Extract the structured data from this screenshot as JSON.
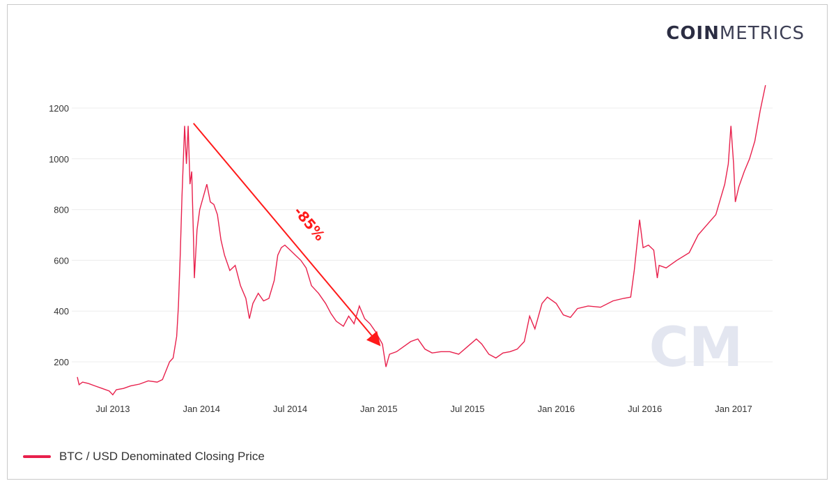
{
  "brand": {
    "bold": "COIN",
    "light": "METRICS",
    "watermark": "CM"
  },
  "colors": {
    "series": "#e8204c",
    "annotation": "#ff1a1a",
    "grid": "#ececec",
    "text": "#333333"
  },
  "chart_data": {
    "type": "line",
    "title": "",
    "xlabel": "",
    "ylabel": "",
    "ylim": [
      60,
      1300
    ],
    "yticks": [
      200,
      400,
      600,
      800,
      1000,
      1200
    ],
    "xticks": [
      {
        "label": "Jul 2013",
        "t": 2013.5
      },
      {
        "label": "Jan 2014",
        "t": 2014.0
      },
      {
        "label": "Jul 2014",
        "t": 2014.5
      },
      {
        "label": "Jan 2015",
        "t": 2015.0
      },
      {
        "label": "Jul 2015",
        "t": 2015.5
      },
      {
        "label": "Jan 2016",
        "t": 2016.0
      },
      {
        "label": "Jul 2016",
        "t": 2016.5
      },
      {
        "label": "Jan 2017",
        "t": 2017.0
      }
    ],
    "grid": true,
    "legend_position": "bottom-left",
    "series": [
      {
        "name": "BTC / USD Denominated Closing Price",
        "points": [
          [
            2013.3,
            140
          ],
          [
            2013.31,
            110
          ],
          [
            2013.33,
            120
          ],
          [
            2013.36,
            115
          ],
          [
            2013.4,
            105
          ],
          [
            2013.44,
            95
          ],
          [
            2013.48,
            85
          ],
          [
            2013.5,
            70
          ],
          [
            2013.52,
            90
          ],
          [
            2013.56,
            95
          ],
          [
            2013.6,
            105
          ],
          [
            2013.65,
            112
          ],
          [
            2013.7,
            125
          ],
          [
            2013.75,
            120
          ],
          [
            2013.78,
            130
          ],
          [
            2013.8,
            165
          ],
          [
            2013.82,
            200
          ],
          [
            2013.84,
            215
          ],
          [
            2013.86,
            300
          ],
          [
            2013.87,
            420
          ],
          [
            2013.88,
            620
          ],
          [
            2013.89,
            850
          ],
          [
            2013.905,
            1130
          ],
          [
            2013.915,
            980
          ],
          [
            2013.925,
            1130
          ],
          [
            2013.935,
            900
          ],
          [
            2013.945,
            950
          ],
          [
            2013.955,
            680
          ],
          [
            2013.96,
            530
          ],
          [
            2013.975,
            720
          ],
          [
            2013.99,
            800
          ],
          [
            2014.01,
            850
          ],
          [
            2014.03,
            900
          ],
          [
            2014.05,
            830
          ],
          [
            2014.07,
            820
          ],
          [
            2014.09,
            780
          ],
          [
            2014.11,
            680
          ],
          [
            2014.13,
            620
          ],
          [
            2014.16,
            560
          ],
          [
            2014.19,
            580
          ],
          [
            2014.22,
            500
          ],
          [
            2014.25,
            450
          ],
          [
            2014.27,
            370
          ],
          [
            2014.29,
            430
          ],
          [
            2014.32,
            470
          ],
          [
            2014.35,
            440
          ],
          [
            2014.38,
            450
          ],
          [
            2014.41,
            520
          ],
          [
            2014.43,
            620
          ],
          [
            2014.45,
            650
          ],
          [
            2014.47,
            660
          ],
          [
            2014.5,
            640
          ],
          [
            2014.53,
            620
          ],
          [
            2014.56,
            600
          ],
          [
            2014.59,
            570
          ],
          [
            2014.62,
            500
          ],
          [
            2014.66,
            470
          ],
          [
            2014.7,
            430
          ],
          [
            2014.73,
            390
          ],
          [
            2014.76,
            360
          ],
          [
            2014.8,
            340
          ],
          [
            2014.83,
            380
          ],
          [
            2014.86,
            350
          ],
          [
            2014.89,
            420
          ],
          [
            2014.92,
            370
          ],
          [
            2014.95,
            350
          ],
          [
            2014.98,
            320
          ],
          [
            2015.02,
            270
          ],
          [
            2015.04,
            180
          ],
          [
            2015.06,
            230
          ],
          [
            2015.1,
            240
          ],
          [
            2015.14,
            260
          ],
          [
            2015.18,
            280
          ],
          [
            2015.22,
            290
          ],
          [
            2015.26,
            250
          ],
          [
            2015.3,
            235
          ],
          [
            2015.35,
            240
          ],
          [
            2015.4,
            240
          ],
          [
            2015.45,
            230
          ],
          [
            2015.5,
            260
          ],
          [
            2015.55,
            290
          ],
          [
            2015.58,
            270
          ],
          [
            2015.62,
            230
          ],
          [
            2015.66,
            215
          ],
          [
            2015.7,
            235
          ],
          [
            2015.74,
            240
          ],
          [
            2015.78,
            250
          ],
          [
            2015.82,
            280
          ],
          [
            2015.85,
            380
          ],
          [
            2015.88,
            330
          ],
          [
            2015.92,
            430
          ],
          [
            2015.95,
            455
          ],
          [
            2016.0,
            430
          ],
          [
            2016.04,
            385
          ],
          [
            2016.08,
            375
          ],
          [
            2016.12,
            410
          ],
          [
            2016.18,
            420
          ],
          [
            2016.25,
            415
          ],
          [
            2016.32,
            440
          ],
          [
            2016.38,
            450
          ],
          [
            2016.42,
            455
          ],
          [
            2016.44,
            560
          ],
          [
            2016.47,
            760
          ],
          [
            2016.49,
            650
          ],
          [
            2016.52,
            660
          ],
          [
            2016.55,
            640
          ],
          [
            2016.57,
            530
          ],
          [
            2016.58,
            580
          ],
          [
            2016.62,
            570
          ],
          [
            2016.68,
            600
          ],
          [
            2016.75,
            630
          ],
          [
            2016.8,
            700
          ],
          [
            2016.85,
            740
          ],
          [
            2016.9,
            780
          ],
          [
            2016.95,
            900
          ],
          [
            2016.97,
            980
          ],
          [
            2016.985,
            1130
          ],
          [
            2017.0,
            980
          ],
          [
            2017.01,
            830
          ],
          [
            2017.03,
            890
          ],
          [
            2017.06,
            950
          ],
          [
            2017.09,
            1000
          ],
          [
            2017.12,
            1070
          ],
          [
            2017.15,
            1190
          ],
          [
            2017.18,
            1290
          ]
        ]
      }
    ],
    "annotations": [
      {
        "text": "-85%",
        "arrow_from": [
          2013.955,
          1140
        ],
        "arrow_to": [
          2015.0,
          270
        ]
      }
    ]
  }
}
